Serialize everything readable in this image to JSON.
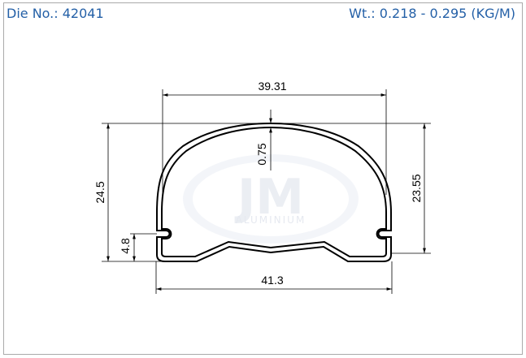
{
  "header": {
    "die_no": "Die No.: 42041",
    "weight": "Wt.: 0.218 - 0.295 (KG/M)"
  },
  "watermark": {
    "logo": "JM",
    "name": "ALUMINIUM"
  },
  "dimensions": {
    "top_width": "39.31",
    "wall": "0.75",
    "left_height": "24.5",
    "right_height": "23.55",
    "slot_height": "4.8",
    "bottom_width": "41.3"
  }
}
